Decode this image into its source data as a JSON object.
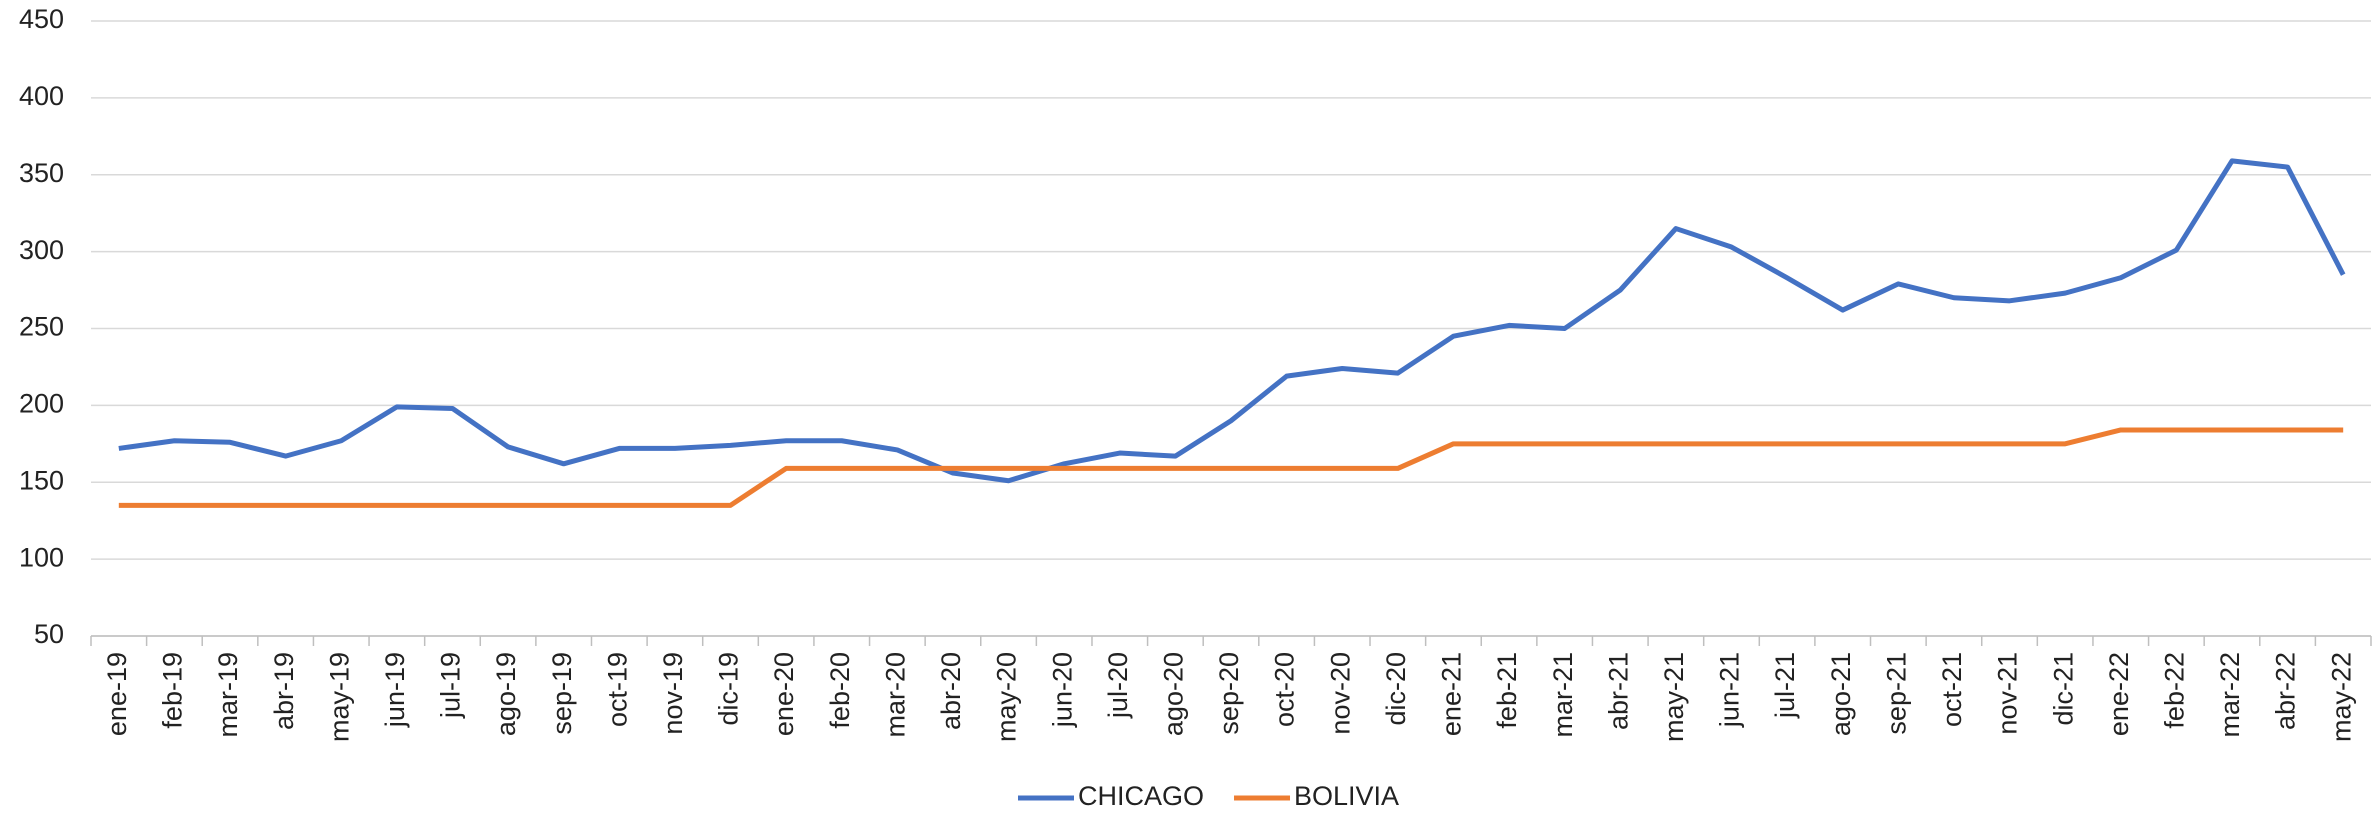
{
  "chart_data": {
    "type": "line",
    "categories": [
      "ene-19",
      "feb-19",
      "mar-19",
      "abr-19",
      "may-19",
      "jun-19",
      "jul-19",
      "ago-19",
      "sep-19",
      "oct-19",
      "nov-19",
      "dic-19",
      "ene-20",
      "feb-20",
      "mar-20",
      "abr-20",
      "may-20",
      "jun-20",
      "jul-20",
      "ago-20",
      "sep-20",
      "oct-20",
      "nov-20",
      "dic-20",
      "ene-21",
      "feb-21",
      "mar-21",
      "abr-21",
      "may-21",
      "jun-21",
      "jul-21",
      "ago-21",
      "sep-21",
      "oct-21",
      "nov-21",
      "dic-21",
      "ene-22",
      "feb-22",
      "mar-22",
      "abr-22",
      "may-22"
    ],
    "series": [
      {
        "name": "CHICAGO",
        "color": "#4472c4",
        "values": [
          172,
          177,
          176,
          167,
          177,
          199,
          198,
          173,
          162,
          172,
          172,
          174,
          177,
          177,
          171,
          156,
          151,
          162,
          169,
          167,
          190,
          219,
          224,
          221,
          245,
          252,
          250,
          275,
          315,
          303,
          283,
          262,
          279,
          270,
          268,
          273,
          283,
          301,
          359,
          355,
          285
        ]
      },
      {
        "name": "BOLIVIA",
        "color": "#ed7d31",
        "values": [
          135,
          135,
          135,
          135,
          135,
          135,
          135,
          135,
          135,
          135,
          135,
          135,
          159,
          159,
          159,
          159,
          159,
          159,
          159,
          159,
          159,
          159,
          159,
          159,
          175,
          175,
          175,
          175,
          175,
          175,
          175,
          175,
          175,
          175,
          175,
          175,
          184,
          184,
          184,
          184,
          184
        ]
      }
    ],
    "ylim": [
      50,
      450
    ],
    "yticks": [
      50,
      100,
      150,
      200,
      250,
      300,
      350,
      400,
      450
    ],
    "grid": true,
    "legend": "bottom"
  }
}
